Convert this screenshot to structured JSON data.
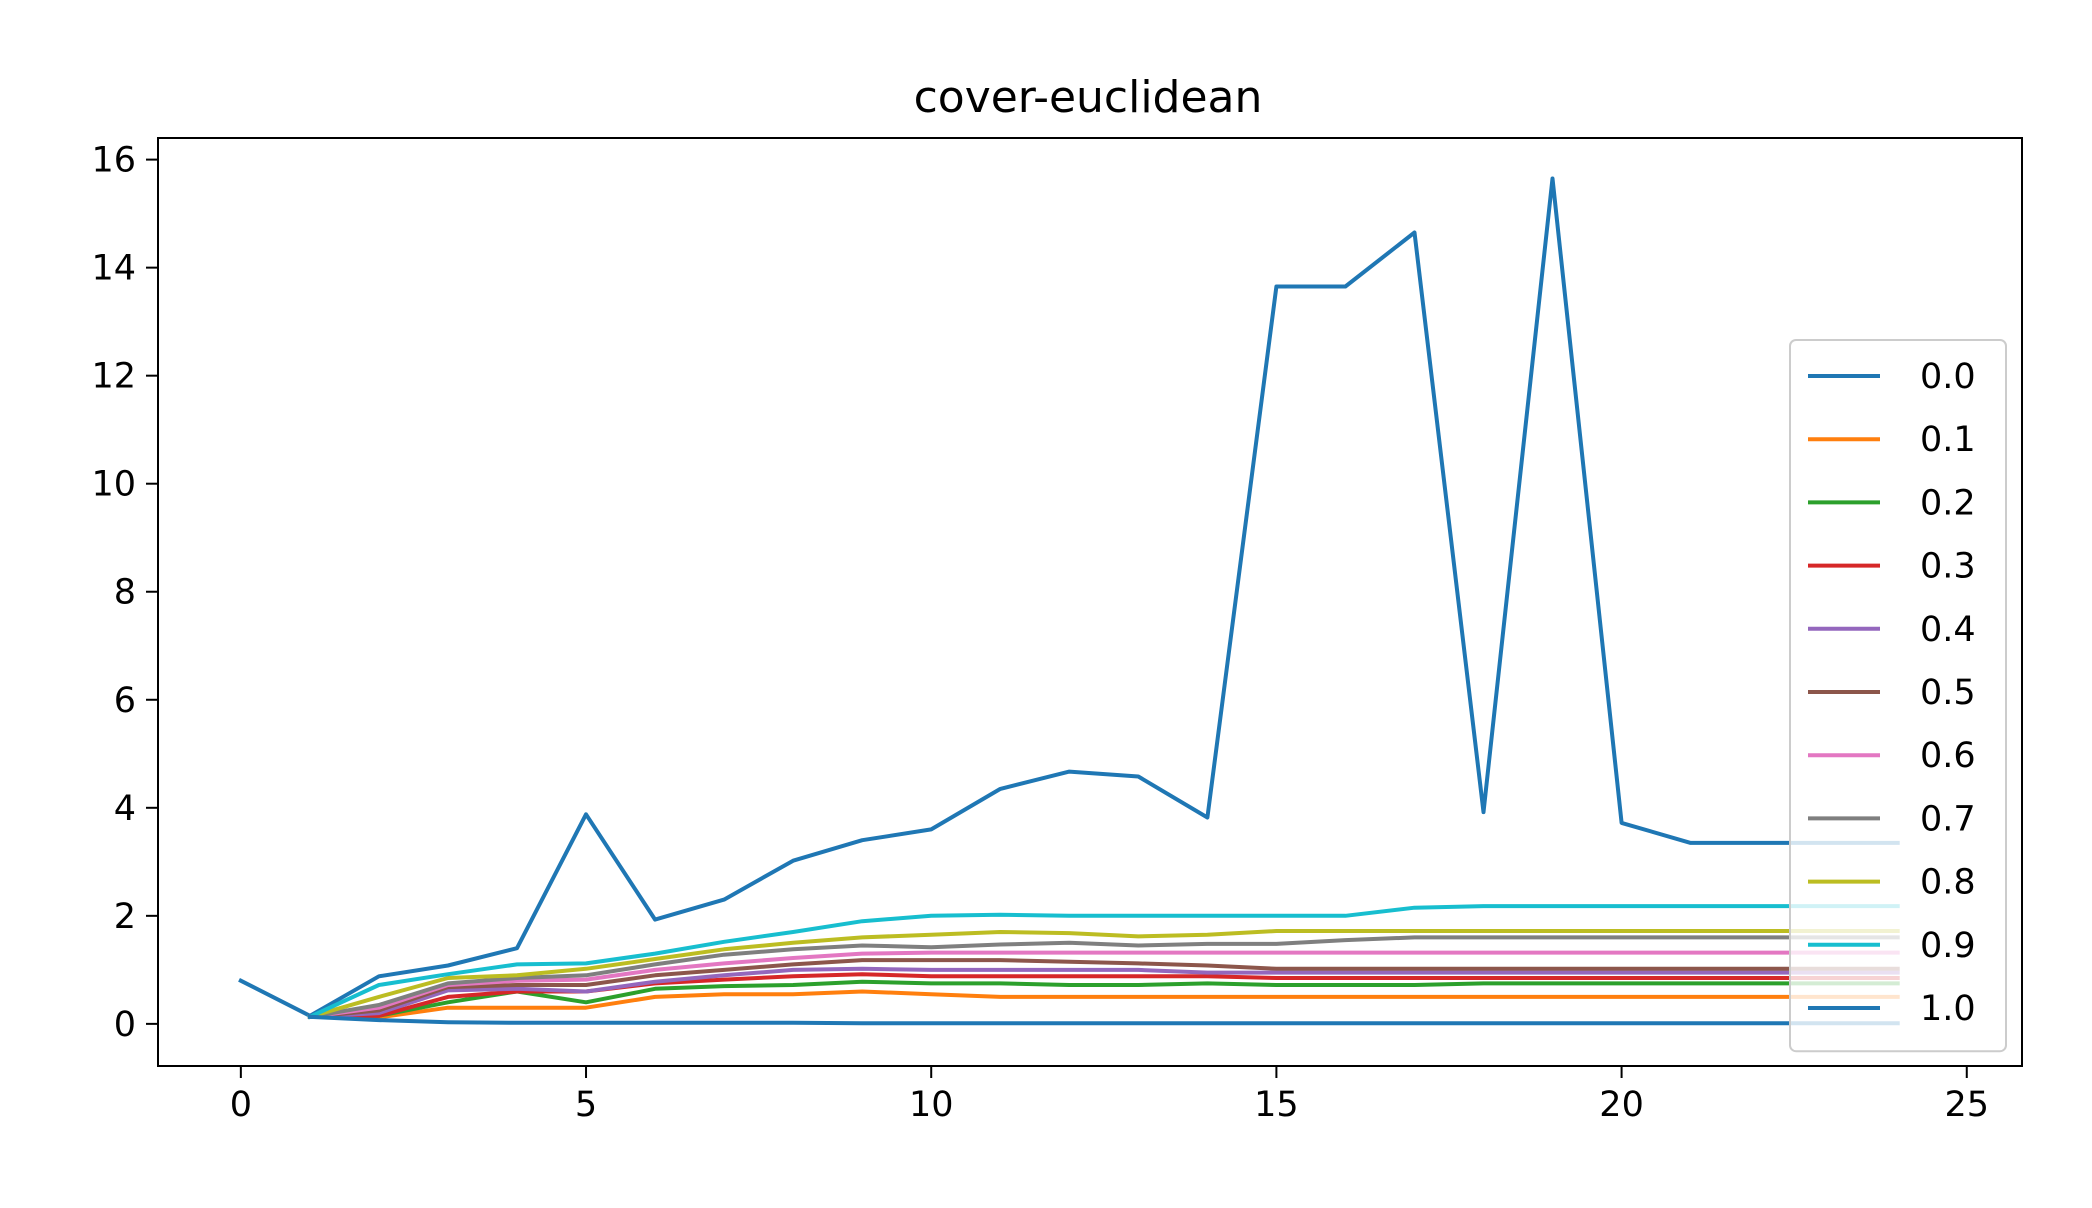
{
  "chart_data": {
    "type": "line",
    "title": "cover-euclidean",
    "xlabel": "",
    "ylabel": "",
    "xlim": [
      -1.2,
      25.8
    ],
    "ylim": [
      -0.78,
      16.4
    ],
    "xticks": [
      0,
      5,
      10,
      15,
      20,
      25
    ],
    "yticks": [
      0,
      2,
      4,
      6,
      8,
      10,
      12,
      14,
      16
    ],
    "grid": false,
    "legend_position": "right",
    "series": [
      {
        "name": "0.0",
        "color": "#1f77b4",
        "x": [
          0,
          1,
          2,
          3,
          4,
          5,
          6,
          7,
          8,
          9,
          10,
          11,
          12,
          13,
          14,
          15,
          16,
          17,
          18,
          19,
          20,
          21,
          22,
          23,
          24
        ],
        "values": [
          0.8,
          0.15,
          0.88,
          1.08,
          1.4,
          3.88,
          1.93,
          2.3,
          3.02,
          3.4,
          3.6,
          4.35,
          4.67,
          4.58,
          3.82,
          13.65,
          13.65,
          14.65,
          3.92,
          15.65,
          3.72,
          3.35,
          3.35,
          3.35,
          3.35
        ]
      },
      {
        "name": "0.1",
        "color": "#ff7f0e",
        "x": [
          1,
          2,
          3,
          4,
          5,
          6,
          7,
          8,
          9,
          10,
          11,
          12,
          13,
          14,
          15,
          16,
          17,
          18,
          19,
          20,
          21,
          22,
          23,
          24
        ],
        "values": [
          0.13,
          0.12,
          0.3,
          0.3,
          0.3,
          0.5,
          0.55,
          0.55,
          0.6,
          0.55,
          0.5,
          0.5,
          0.5,
          0.5,
          0.5,
          0.5,
          0.5,
          0.5,
          0.5,
          0.5,
          0.5,
          0.5,
          0.5,
          0.5
        ]
      },
      {
        "name": "0.2",
        "color": "#2ca02c",
        "x": [
          1,
          2,
          3,
          4,
          5,
          6,
          7,
          8,
          9,
          10,
          11,
          12,
          13,
          14,
          15,
          16,
          17,
          18,
          19,
          20,
          21,
          22,
          23,
          24
        ],
        "values": [
          0.13,
          0.15,
          0.4,
          0.6,
          0.4,
          0.65,
          0.7,
          0.72,
          0.78,
          0.75,
          0.75,
          0.72,
          0.72,
          0.75,
          0.72,
          0.72,
          0.72,
          0.75,
          0.75,
          0.75,
          0.75,
          0.75,
          0.75,
          0.75
        ]
      },
      {
        "name": "0.3",
        "color": "#d62728",
        "x": [
          1,
          2,
          3,
          4,
          5,
          6,
          7,
          8,
          9,
          10,
          11,
          12,
          13,
          14,
          15,
          16,
          17,
          18,
          19,
          20,
          21,
          22,
          23,
          24
        ],
        "values": [
          0.13,
          0.15,
          0.5,
          0.6,
          0.6,
          0.75,
          0.82,
          0.88,
          0.92,
          0.88,
          0.88,
          0.88,
          0.88,
          0.88,
          0.85,
          0.85,
          0.85,
          0.85,
          0.85,
          0.85,
          0.85,
          0.85,
          0.85,
          0.85
        ]
      },
      {
        "name": "0.4",
        "color": "#9467bd",
        "x": [
          1,
          2,
          3,
          4,
          5,
          6,
          7,
          8,
          9,
          10,
          11,
          12,
          13,
          14,
          15,
          16,
          17,
          18,
          19,
          20,
          21,
          22,
          23,
          24
        ],
        "values": [
          0.13,
          0.2,
          0.62,
          0.65,
          0.6,
          0.78,
          0.9,
          1.0,
          1.02,
          1.0,
          1.0,
          1.0,
          1.0,
          0.95,
          0.95,
          0.95,
          0.95,
          0.95,
          0.95,
          0.95,
          0.95,
          0.95,
          0.95,
          0.95
        ]
      },
      {
        "name": "0.5",
        "color": "#8c564b",
        "x": [
          1,
          2,
          3,
          4,
          5,
          6,
          7,
          8,
          9,
          10,
          11,
          12,
          13,
          14,
          15,
          16,
          17,
          18,
          19,
          20,
          21,
          22,
          23,
          24
        ],
        "values": [
          0.13,
          0.25,
          0.68,
          0.72,
          0.72,
          0.9,
          1.0,
          1.1,
          1.18,
          1.18,
          1.18,
          1.15,
          1.12,
          1.08,
          1.02,
          1.02,
          1.02,
          1.02,
          1.02,
          1.02,
          1.02,
          1.02,
          1.02,
          1.02
        ]
      },
      {
        "name": "0.6",
        "color": "#e377c2",
        "x": [
          1,
          2,
          3,
          4,
          5,
          6,
          7,
          8,
          9,
          10,
          11,
          12,
          13,
          14,
          15,
          16,
          17,
          18,
          19,
          20,
          21,
          22,
          23,
          24
        ],
        "values": [
          0.13,
          0.3,
          0.72,
          0.8,
          0.82,
          1.0,
          1.12,
          1.22,
          1.3,
          1.32,
          1.32,
          1.32,
          1.32,
          1.32,
          1.32,
          1.32,
          1.32,
          1.32,
          1.32,
          1.32,
          1.32,
          1.32,
          1.32,
          1.32
        ]
      },
      {
        "name": "0.7",
        "color": "#7f7f7f",
        "x": [
          1,
          2,
          3,
          4,
          5,
          6,
          7,
          8,
          9,
          10,
          11,
          12,
          13,
          14,
          15,
          16,
          17,
          18,
          19,
          20,
          21,
          22,
          23,
          24
        ],
        "values": [
          0.13,
          0.35,
          0.75,
          0.85,
          0.9,
          1.1,
          1.28,
          1.38,
          1.45,
          1.42,
          1.47,
          1.5,
          1.45,
          1.48,
          1.48,
          1.55,
          1.6,
          1.6,
          1.6,
          1.6,
          1.6,
          1.6,
          1.6,
          1.6
        ]
      },
      {
        "name": "0.8",
        "color": "#bcbd22",
        "x": [
          1,
          2,
          3,
          4,
          5,
          6,
          7,
          8,
          9,
          10,
          11,
          12,
          13,
          14,
          15,
          16,
          17,
          18,
          19,
          20,
          21,
          22,
          23,
          24
        ],
        "values": [
          0.13,
          0.5,
          0.85,
          0.9,
          1.02,
          1.2,
          1.38,
          1.5,
          1.6,
          1.65,
          1.7,
          1.68,
          1.62,
          1.65,
          1.72,
          1.72,
          1.72,
          1.72,
          1.72,
          1.72,
          1.72,
          1.72,
          1.72,
          1.72
        ]
      },
      {
        "name": "0.9",
        "color": "#17becf",
        "x": [
          1,
          2,
          3,
          4,
          5,
          6,
          7,
          8,
          9,
          10,
          11,
          12,
          13,
          14,
          15,
          16,
          17,
          18,
          19,
          20,
          21,
          22,
          23,
          24
        ],
        "values": [
          0.13,
          0.72,
          0.92,
          1.1,
          1.12,
          1.3,
          1.52,
          1.7,
          1.9,
          2.0,
          2.02,
          2.0,
          2.0,
          2.0,
          2.0,
          2.0,
          2.15,
          2.18,
          2.18,
          2.18,
          2.18,
          2.18,
          2.18,
          2.18
        ]
      },
      {
        "name": "1.0",
        "color": "#1f77b4",
        "x": [
          1,
          2,
          3,
          4,
          5,
          6,
          7,
          8,
          9,
          10,
          11,
          12,
          13,
          14,
          15,
          16,
          17,
          18,
          19,
          20,
          21,
          22,
          23,
          24
        ],
        "values": [
          0.13,
          0.07,
          0.03,
          0.02,
          0.02,
          0.02,
          0.02,
          0.02,
          0.01,
          0.01,
          0.01,
          0.01,
          0.01,
          0.01,
          0.01,
          0.01,
          0.01,
          0.01,
          0.01,
          0.01,
          0.01,
          0.01,
          0.01,
          0.01
        ]
      }
    ]
  }
}
